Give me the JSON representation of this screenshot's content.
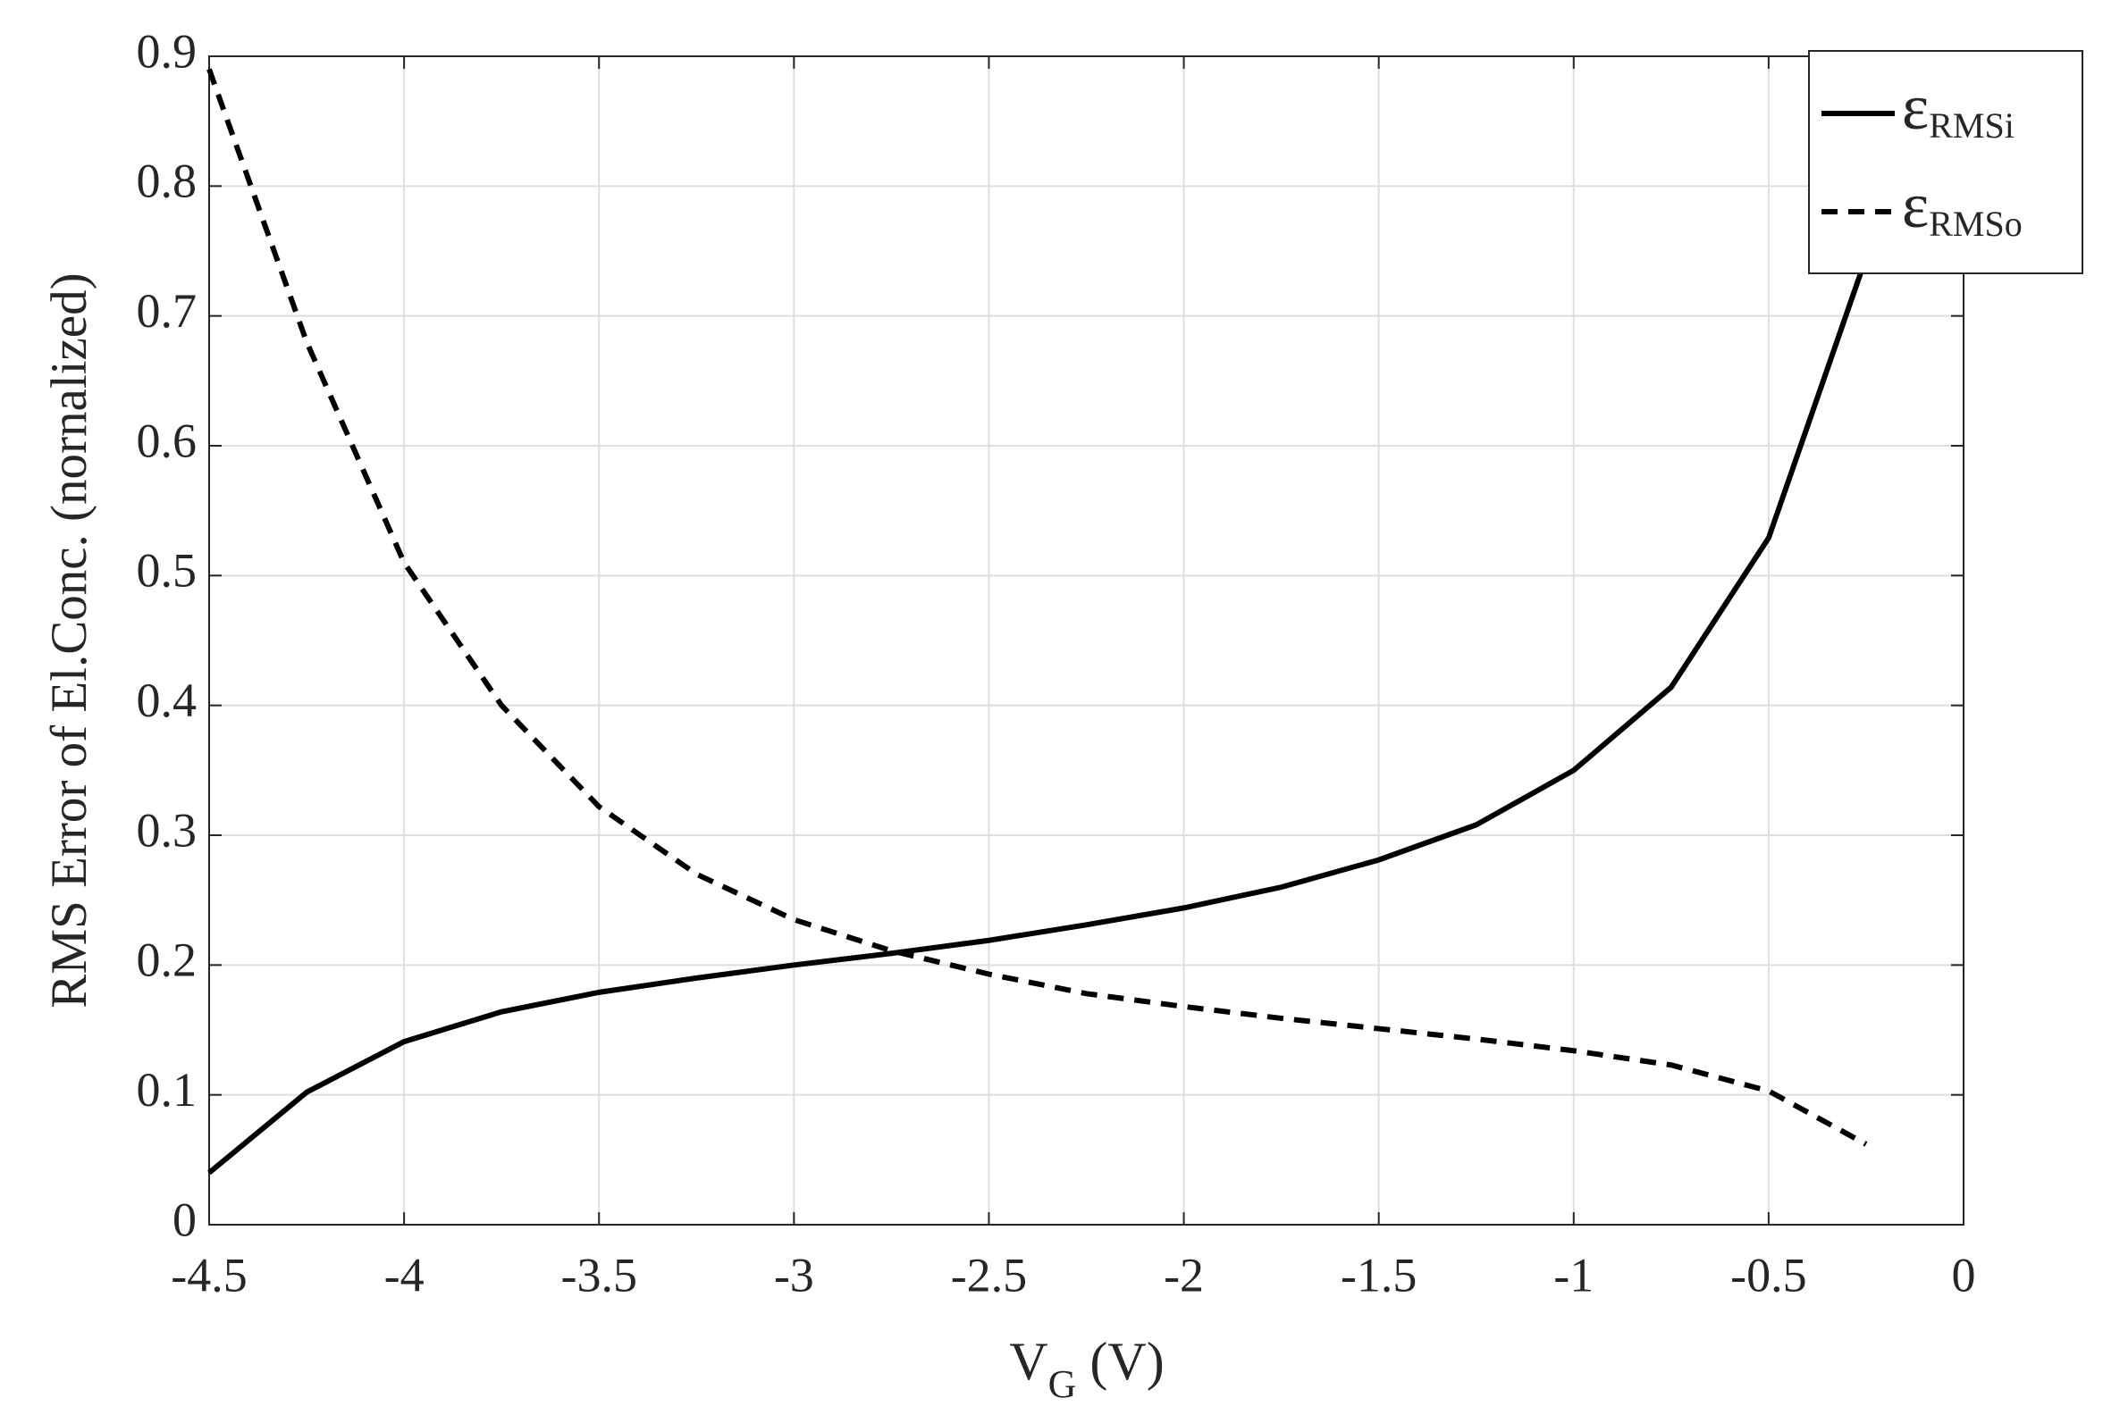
{
  "chart_data": {
    "type": "line",
    "ylabel": "RMS Error of El.Conc. (nornalized)",
    "xlabel": {
      "main": "V",
      "sub": "G",
      "unit": " (V)"
    },
    "x": [
      -4.5,
      -4.25,
      -4,
      -3.75,
      -3.5,
      -3.25,
      -3,
      -2.75,
      -2.5,
      -2.25,
      -2,
      -1.75,
      -1.5,
      -1.25,
      -1,
      -0.75,
      -0.5,
      -0.25
    ],
    "series": [
      {
        "name": "ε",
        "subscript": "RMSi",
        "color": "#000000",
        "dash": false,
        "values": [
          0.04,
          0.102,
          0.141,
          0.164,
          0.179,
          0.19,
          0.2,
          0.209,
          0.219,
          0.231,
          0.244,
          0.26,
          0.281,
          0.308,
          0.35,
          0.414,
          0.529,
          0.745
        ]
      },
      {
        "name": "ε",
        "subscript": "RMSo",
        "color": "#000000",
        "dash": true,
        "values": [
          0.89,
          0.68,
          0.51,
          0.4,
          0.322,
          0.27,
          0.235,
          0.211,
          0.193,
          0.178,
          0.168,
          0.159,
          0.151,
          0.143,
          0.134,
          0.123,
          0.103,
          0.062
        ]
      }
    ],
    "xlim": [
      -4.5,
      0
    ],
    "xticks": [
      -4.5,
      -4,
      -3.5,
      -3,
      -2.5,
      -2,
      -1.5,
      -1,
      -0.5,
      0
    ],
    "ylim": [
      0,
      0.9
    ],
    "yticks": [
      0,
      0.1,
      0.2,
      0.3,
      0.4,
      0.5,
      0.6,
      0.7,
      0.8,
      0.9
    ],
    "grid": true,
    "legend": "upper right"
  }
}
